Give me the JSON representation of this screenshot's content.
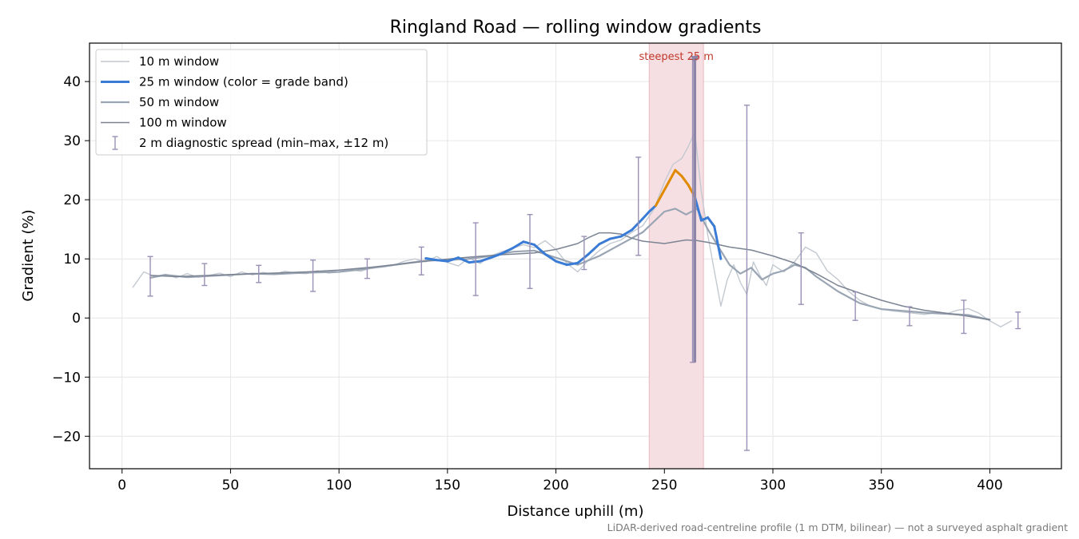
{
  "chart_data": {
    "type": "line",
    "title": "Ringland Road — rolling window gradients",
    "xlabel": "Distance uphill (m)",
    "ylabel": "Gradient (%)",
    "footnote": "LiDAR-derived road-centreline profile (1 m DTM, bilinear) — not a surveyed asphalt gradient",
    "xlim": [
      -15,
      433
    ],
    "ylim": [
      -25.5,
      46.5
    ],
    "xticks": [
      0,
      50,
      100,
      150,
      200,
      250,
      300,
      350,
      400
    ],
    "yticks": [
      -20,
      -10,
      0,
      10,
      20,
      30,
      40
    ],
    "xtick_labels": [
      "0",
      "50",
      "100",
      "150",
      "200",
      "250",
      "300",
      "350",
      "400"
    ],
    "ytick_labels": [
      "−20",
      "−10",
      "0",
      "10",
      "20",
      "30",
      "40"
    ],
    "grid": true,
    "legend_position": "top-left",
    "colors": {
      "w10": "#c3c9d1",
      "w25_band_low": "#3a7bd5",
      "w25_band_high": "#e08a00",
      "w50": "#9aa5b3",
      "w100": "#7b8493",
      "diag": "#9a90b5",
      "highlight_fill": "#f6dfe2",
      "highlight_edge": "#eab8c0",
      "annotation": "#c0392b",
      "marker": "#8c86a8"
    },
    "legend": [
      {
        "key": "w10",
        "label": "10 m window"
      },
      {
        "key": "w25",
        "label": "25 m window (color = grade band)"
      },
      {
        "key": "w50",
        "label": "50 m window"
      },
      {
        "key": "w100",
        "label": "100 m window"
      },
      {
        "key": "diag",
        "label": "2 m diagnostic spread (min–max, ±12 m)"
      }
    ],
    "highlight": {
      "x0": 243,
      "x1": 268,
      "label": "steepest 25 m"
    },
    "steepest_marker": {
      "x": 264,
      "y_top": 43.8,
      "y_bottom": -7.5
    },
    "series": [
      {
        "name": "10 m window",
        "key": "w10",
        "x": [
          5,
          10,
          15,
          20,
          25,
          30,
          35,
          40,
          45,
          50,
          55,
          60,
          65,
          70,
          75,
          80,
          85,
          90,
          95,
          100,
          105,
          110,
          115,
          120,
          125,
          130,
          135,
          140,
          145,
          150,
          155,
          160,
          165,
          170,
          175,
          180,
          185,
          190,
          195,
          200,
          205,
          210,
          215,
          220,
          225,
          230,
          235,
          240,
          245,
          250,
          254,
          258,
          261,
          264,
          267,
          270,
          273,
          276,
          279,
          282,
          285,
          288,
          291,
          294,
          297,
          300,
          305,
          310,
          315,
          320,
          325,
          330,
          335,
          340,
          345,
          350,
          355,
          360,
          365,
          370,
          375,
          380,
          385,
          390,
          395,
          400,
          405,
          410
        ],
        "y": [
          5.2,
          7.8,
          7.0,
          7.4,
          6.8,
          7.5,
          6.9,
          7.2,
          7.6,
          7.0,
          7.8,
          7.3,
          7.7,
          7.4,
          7.9,
          7.6,
          7.5,
          8.0,
          7.6,
          7.8,
          8.2,
          7.9,
          8.5,
          8.6,
          8.9,
          9.6,
          10.0,
          9.5,
          10.4,
          9.4,
          8.8,
          10.2,
          9.2,
          10.5,
          11.2,
          11.8,
          12.4,
          11.9,
          13.1,
          11.6,
          9.3,
          7.8,
          9.8,
          11.4,
          12.6,
          13.2,
          14.5,
          15.6,
          18.3,
          23.0,
          26.0,
          27.0,
          29.0,
          31.5,
          21.5,
          14.0,
          8.0,
          2.0,
          6.5,
          9.0,
          6.0,
          4.0,
          9.5,
          7.2,
          5.5,
          9.0,
          7.8,
          9.5,
          12.0,
          11.0,
          8.0,
          6.5,
          4.5,
          3.0,
          2.0,
          1.5,
          1.2,
          1.0,
          0.8,
          0.6,
          0.9,
          0.7,
          1.3,
          1.6,
          0.8,
          -0.5,
          -1.5,
          -0.5
        ]
      },
      {
        "name": "25 m window (color = grade band)",
        "key": "w25",
        "band_threshold": 20,
        "x": [
          140,
          145,
          150,
          155,
          160,
          165,
          170,
          175,
          180,
          185,
          190,
          195,
          200,
          205,
          210,
          215,
          220,
          225,
          230,
          235,
          240,
          243,
          246,
          249,
          252,
          255,
          258,
          261,
          264,
          267,
          270,
          273,
          276
        ],
        "y": [
          10.1,
          9.8,
          9.6,
          10.2,
          9.4,
          9.6,
          10.2,
          10.9,
          11.8,
          12.9,
          12.4,
          10.8,
          9.6,
          9.0,
          9.3,
          10.8,
          12.5,
          13.4,
          13.8,
          14.9,
          16.8,
          18.0,
          19.0,
          21.0,
          23.0,
          25.0,
          24.0,
          22.5,
          20.5,
          16.5,
          17.0,
          15.5,
          10.0
        ]
      },
      {
        "name": "50 m window",
        "key": "w50",
        "x": [
          13,
          20,
          30,
          40,
          50,
          60,
          70,
          80,
          90,
          100,
          110,
          120,
          130,
          140,
          150,
          160,
          170,
          180,
          190,
          200,
          210,
          220,
          230,
          240,
          250,
          255,
          260,
          265,
          270,
          275,
          280,
          285,
          290,
          295,
          300,
          305,
          310,
          315,
          320,
          330,
          340,
          350,
          360,
          370,
          380,
          390,
          400
        ],
        "y": [
          6.8,
          7.3,
          6.9,
          7.1,
          7.3,
          7.5,
          7.4,
          7.6,
          7.7,
          7.8,
          8.2,
          8.7,
          9.2,
          9.7,
          9.8,
          10.0,
          10.5,
          11.2,
          11.4,
          10.2,
          9.0,
          10.5,
          12.5,
          14.5,
          18.0,
          18.5,
          17.5,
          18.5,
          15.0,
          12.0,
          9.0,
          7.5,
          8.5,
          6.5,
          7.5,
          8.0,
          9.0,
          8.5,
          7.0,
          4.5,
          2.5,
          1.5,
          1.2,
          0.9,
          0.7,
          0.5,
          -0.3
        ]
      },
      {
        "name": "100 m window",
        "key": "w100",
        "x": [
          13,
          25,
          40,
          55,
          70,
          85,
          100,
          115,
          130,
          145,
          160,
          175,
          190,
          200,
          210,
          215,
          220,
          225,
          230,
          235,
          240,
          245,
          250,
          255,
          260,
          265,
          270,
          275,
          280,
          290,
          300,
          310,
          320,
          330,
          340,
          350,
          360,
          370,
          380,
          390,
          400
        ],
        "y": [
          7.2,
          7.0,
          7.2,
          7.4,
          7.6,
          7.8,
          8.1,
          8.6,
          9.2,
          9.8,
          10.3,
          10.7,
          11.0,
          11.6,
          12.6,
          13.6,
          14.4,
          14.4,
          14.2,
          13.5,
          13.0,
          12.8,
          12.6,
          12.9,
          13.2,
          13.1,
          12.8,
          12.4,
          12.0,
          11.5,
          10.5,
          9.3,
          7.5,
          5.5,
          4.2,
          3.0,
          2.0,
          1.3,
          0.8,
          0.3,
          -0.3
        ]
      }
    ],
    "diagnostic_spread": {
      "x": [
        13,
        38,
        63,
        88,
        113,
        138,
        163,
        188,
        213,
        238,
        263,
        288,
        313,
        338,
        363,
        388,
        413
      ],
      "ymin": [
        3.7,
        5.5,
        6.0,
        4.5,
        6.7,
        7.3,
        3.8,
        5.0,
        8.2,
        10.6,
        -7.5,
        -22.4,
        2.3,
        -0.4,
        -1.3,
        -2.6,
        -1.8
      ],
      "ymax": [
        10.4,
        9.2,
        8.9,
        9.8,
        10.0,
        12.0,
        16.1,
        17.5,
        13.8,
        27.2,
        43.8,
        36.0,
        14.4,
        4.4,
        1.9,
        3.0,
        1.0
      ]
    }
  }
}
